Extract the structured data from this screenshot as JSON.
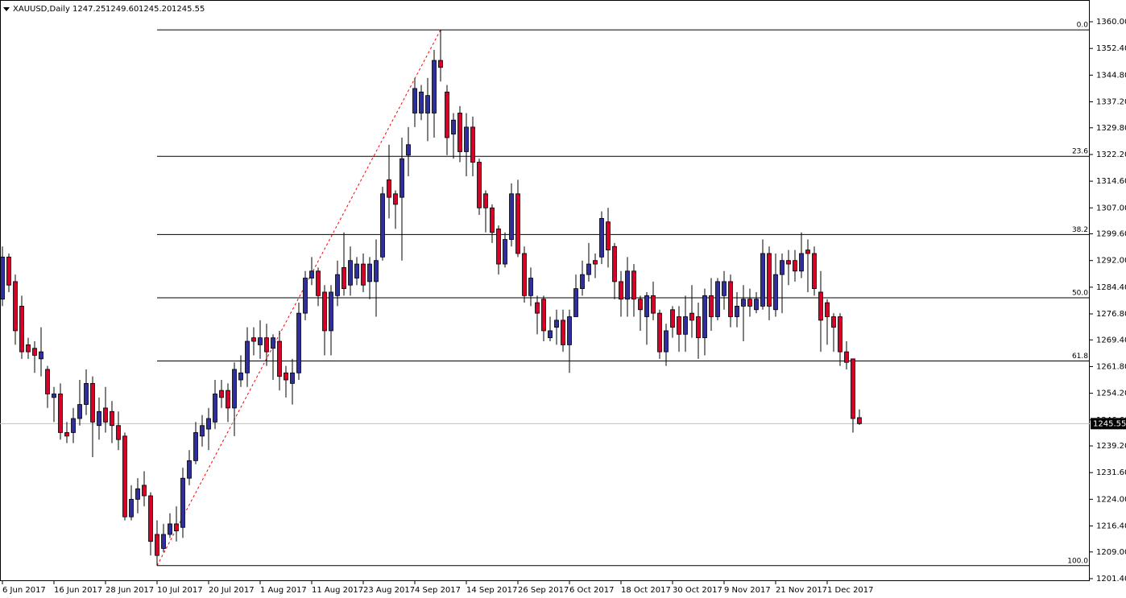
{
  "chart_data": {
    "type": "candlestick",
    "header": {
      "symbol": "XAUUSD,Daily",
      "ohlc": [
        "1247.25",
        "1249.60",
        "1245.20",
        "1245.55"
      ]
    },
    "categories": [
      "6 Jun 2017",
      null,
      null,
      null,
      null,
      null,
      null,
      null,
      "16 Jun 2017",
      null,
      null,
      null,
      null,
      null,
      null,
      null,
      "28 Jun 2017",
      null,
      null,
      null,
      null,
      null,
      null,
      null,
      "10 Jul 2017",
      null,
      null,
      null,
      null,
      null,
      null,
      null,
      "20 Jul 2017",
      null,
      null,
      null,
      null,
      null,
      null,
      null,
      "1 Aug 2017",
      null,
      null,
      null,
      null,
      null,
      null,
      null,
      "11 Aug 2017",
      null,
      null,
      null,
      null,
      null,
      null,
      null,
      "23 Aug 2017",
      null,
      null,
      null,
      null,
      null,
      null,
      null,
      "4 Sep 2017",
      null,
      null,
      null,
      null,
      null,
      null,
      null,
      "14 Sep 2017",
      null,
      null,
      null,
      null,
      null,
      null,
      null,
      "26 Sep 2017",
      null,
      null,
      null,
      null,
      null,
      null,
      null,
      "6 Oct 2017",
      null,
      null,
      null,
      null,
      null,
      null,
      null,
      "18 Oct 2017",
      null,
      null,
      null,
      null,
      null,
      null,
      null,
      "30 Oct 2017",
      null,
      null,
      null,
      null,
      null,
      null,
      null,
      "9 Nov 2017",
      null,
      null,
      null,
      null,
      null,
      null,
      null,
      "21 Nov 2017",
      null,
      null,
      null,
      null,
      null,
      null,
      null,
      "1 Dec 2017",
      null,
      null,
      null,
      null,
      null
    ],
    "open": [
      1281,
      1293,
      1286,
      1279,
      1268,
      1267,
      1264,
      1261,
      1253,
      1254,
      1243,
      1243,
      1247,
      1251,
      1257,
      1245,
      1250,
      1249,
      1245,
      1242,
      1219,
      1224,
      1228,
      1225,
      1214,
      1210,
      1214,
      1217,
      1216,
      1230,
      1235,
      1242,
      1244,
      1246,
      1255,
      1255,
      1250,
      1258,
      1260,
      1270,
      1268,
      1270,
      1267,
      1269,
      1260,
      1257,
      1260,
      1277,
      1287,
      1289,
      1283,
      1272,
      1282,
      1290,
      1285,
      1287,
      1291,
      1286,
      1286,
      1293,
      1315,
      1311,
      1310,
      1322,
      1334,
      1334,
      1334,
      1334,
      1349,
      1340,
      1328,
      1334,
      1323,
      1330,
      1320,
      1311,
      1307,
      1301,
      1291,
      1298,
      1311,
      1294,
      1282,
      1280,
      1281,
      1270,
      1273,
      1275,
      1268,
      1276,
      1284,
      1288,
      1292,
      1293,
      1303,
      1296,
      1286,
      1281,
      1289,
      1281,
      1276,
      1282,
      1277,
      1266,
      1278,
      1276,
      1271,
      1277,
      1276,
      1270,
      1282,
      1276,
      1282,
      1286,
      1276,
      1279,
      1281,
      1278,
      1279,
      1294,
      1278,
      1288,
      1292,
      1292,
      1289,
      1295,
      1294,
      1283,
      1280,
      1276,
      1276,
      1266,
      1264,
      1247.25
    ],
    "high": [
      1296,
      1294,
      1288,
      1282,
      1270,
      1269,
      1273,
      1262,
      1256,
      1257,
      1246,
      1250,
      1258,
      1261,
      1259,
      1253,
      1256,
      1252,
      1249,
      1243,
      1228,
      1230,
      1232,
      1226,
      1218,
      1217,
      1220,
      1222,
      1233,
      1238,
      1246,
      1248,
      1250,
      1258,
      1258,
      1257,
      1263,
      1265,
      1273,
      1273,
      1275,
      1274,
      1271,
      1272,
      1262,
      1264,
      1280,
      1289,
      1293,
      1290,
      1285,
      1285,
      1292,
      1300,
      1296,
      1293,
      1294,
      1293,
      1298,
      1313,
      1325,
      1312,
      1327,
      1330,
      1344,
      1342,
      1344,
      1352,
      1357.7,
      1342,
      1334,
      1336,
      1334,
      1333,
      1321,
      1312,
      1308,
      1302,
      1300,
      1314,
      1315,
      1296,
      1290,
      1282,
      1282,
      1276,
      1278,
      1278,
      1278,
      1288,
      1292,
      1297,
      1294,
      1306,
      1307,
      1297,
      1289,
      1293,
      1291,
      1282,
      1283,
      1286,
      1278,
      1274,
      1279,
      1279,
      1282,
      1285,
      1280,
      1284,
      1287,
      1287,
      1289,
      1288,
      1283,
      1285,
      1284,
      1283,
      1298,
      1296,
      1294,
      1294,
      1295,
      1295,
      1300,
      1298,
      1296,
      1289,
      1281,
      1277,
      1277,
      1269,
      1264,
      1249.6
    ],
    "low": [
      1279,
      1283,
      1268,
      1264,
      1264,
      1260,
      1259,
      1250,
      1246,
      1241,
      1240,
      1240,
      1245,
      1248,
      1236,
      1241,
      1243,
      1240,
      1238,
      1218,
      1218,
      1220,
      1222,
      1208,
      1205.1,
      1209,
      1213,
      1212,
      1213,
      1228,
      1234,
      1239,
      1238,
      1244,
      1250,
      1246,
      1242,
      1256,
      1256,
      1265,
      1264,
      1262,
      1258,
      1255,
      1253,
      1251,
      1258,
      1275,
      1285,
      1279,
      1265,
      1265,
      1279,
      1282,
      1282,
      1285,
      1283,
      1281,
      1276,
      1292,
      1304,
      1301,
      1292,
      1316,
      1330,
      1332,
      1326,
      1327,
      1343,
      1322,
      1321,
      1320,
      1316,
      1316,
      1305,
      1300,
      1297,
      1288,
      1290,
      1296,
      1293,
      1280,
      1279,
      1271,
      1269,
      1269,
      1268,
      1266,
      1260,
      1276,
      1282,
      1286,
      1287,
      1291,
      1290,
      1281,
      1276,
      1276,
      1276,
      1272,
      1268,
      1275,
      1264,
      1262,
      1270,
      1266,
      1266,
      1270,
      1264,
      1265,
      1272,
      1275,
      1278,
      1273,
      1273,
      1269,
      1276,
      1277,
      1278,
      1275,
      1276,
      1277,
      1285,
      1286,
      1287,
      1283,
      1282,
      1266,
      1268,
      1266,
      1262,
      1261,
      1243,
      1245.2
    ],
    "close": [
      1293,
      1285,
      1272,
      1266,
      1266,
      1265,
      1266,
      1254,
      1254,
      1243,
      1242,
      1247,
      1251,
      1257,
      1246,
      1249,
      1246,
      1245,
      1241,
      1219,
      1224,
      1227,
      1225,
      1212,
      1208,
      1214,
      1217,
      1215,
      1230,
      1235,
      1243,
      1245,
      1247,
      1254,
      1253,
      1250,
      1261,
      1260,
      1269,
      1269,
      1270,
      1266,
      1270,
      1259,
      1258,
      1260,
      1277,
      1287,
      1289,
      1282,
      1272,
      1283,
      1288,
      1284,
      1292,
      1291,
      1285,
      1291,
      1292,
      1311,
      1310,
      1308,
      1321,
      1325,
      1341,
      1340,
      1339,
      1349,
      1347,
      1327,
      1332,
      1323,
      1330,
      1320,
      1307,
      1307,
      1300,
      1291,
      1298,
      1311,
      1294,
      1282,
      1287,
      1277,
      1272,
      1272,
      1275,
      1268,
      1276,
      1284,
      1288,
      1291,
      1291,
      1304,
      1295,
      1286,
      1281,
      1289,
      1281,
      1278,
      1282,
      1277,
      1266,
      1272,
      1273,
      1271,
      1276,
      1275,
      1270,
      1282,
      1276,
      1286,
      1286,
      1276,
      1279,
      1281,
      1279,
      1281,
      1294,
      1279,
      1288,
      1292,
      1291,
      1289,
      1294,
      1294,
      1284,
      1275,
      1276,
      1273,
      1266,
      1263,
      1247,
      1245.55
    ],
    "up_color": "#2f2f9e",
    "down_color": "#d6002a",
    "ylim": [
      1200.7,
      1366.2
    ],
    "yticks": [
      {
        "value": 1360,
        "label": "1360.00"
      },
      {
        "value": 1352.4,
        "label": "1352.40"
      },
      {
        "value": 1344.8,
        "label": "1344.80"
      },
      {
        "value": 1337.2,
        "label": "1337.20"
      },
      {
        "value": 1329.8,
        "label": "1329.80"
      },
      {
        "value": 1322.2,
        "label": "1322.20"
      },
      {
        "value": 1314.6,
        "label": "1314.60"
      },
      {
        "value": 1307,
        "label": "1307.00"
      },
      {
        "value": 1299.6,
        "label": "1299.60"
      },
      {
        "value": 1292,
        "label": "1292.00"
      },
      {
        "value": 1284.4,
        "label": "1284.40"
      },
      {
        "value": 1276.8,
        "label": "1276.80"
      },
      {
        "value": 1269.4,
        "label": "1269.40"
      },
      {
        "value": 1261.8,
        "label": "1261.80"
      },
      {
        "value": 1254.2,
        "label": "1254.20"
      },
      {
        "value": 1246.6,
        "label": "1246.60"
      },
      {
        "value": 1239.2,
        "label": "1239.20"
      },
      {
        "value": 1231.6,
        "label": "1231.60"
      },
      {
        "value": 1224,
        "label": "1224.00"
      },
      {
        "value": 1216.4,
        "label": "1216.40"
      },
      {
        "value": 1209,
        "label": "1209.00"
      },
      {
        "value": 1201.4,
        "label": "1201.40"
      }
    ],
    "fibonacci": {
      "levels": [
        {
          "value": 0,
          "label": "0.0"
        },
        {
          "value": 23.6,
          "label": "23.6"
        },
        {
          "value": 38.2,
          "label": "38.2"
        },
        {
          "value": 50,
          "label": "50.0"
        },
        {
          "value": 61.8,
          "label": "61.8"
        },
        {
          "value": 100,
          "label": "100.0"
        }
      ],
      "color": "#000000",
      "trend_color": "#ff0000"
    }
  }
}
